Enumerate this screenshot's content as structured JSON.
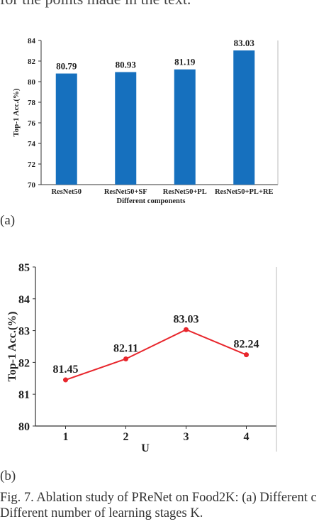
{
  "header_text": "for the points made in the text.",
  "panel_labels": [
    "(a)",
    "(b)"
  ],
  "caption": {
    "line1": "Fig. 7. Ablation study of PReNet on Food2K: (a) Different c",
    "line2": "Different number of learning stages K."
  },
  "chart_data": [
    {
      "type": "bar",
      "categories": [
        "ResNet50",
        "ResNet50+SF",
        "ResNet50+PL",
        "ResNet50+PL+RE"
      ],
      "values": [
        80.79,
        80.93,
        81.19,
        83.03
      ],
      "value_labels": [
        "80.79",
        "80.93",
        "81.19",
        "83.03"
      ],
      "xlabel": "Different components",
      "ylabel": "Top-1 Acc.(%)",
      "ylim": [
        70,
        84
      ],
      "yticks": [
        70,
        72,
        74,
        76,
        78,
        80,
        82,
        84
      ],
      "colors": {
        "bar": "#1670be",
        "axis": "#333333"
      },
      "grid": false
    },
    {
      "type": "line",
      "x": [
        1,
        2,
        3,
        4
      ],
      "values": [
        81.45,
        82.11,
        83.03,
        82.24
      ],
      "value_labels": [
        "81.45",
        "82.11",
        "83.03",
        "82.24"
      ],
      "xlabel": "U",
      "ylabel": "Top-1 Acc.(%)",
      "xlim": [
        0.5,
        4.5
      ],
      "ylim": [
        80,
        85
      ],
      "yticks": [
        80,
        81,
        82,
        83,
        84,
        85
      ],
      "xticks": [
        1,
        2,
        3,
        4
      ],
      "colors": {
        "line": "#e8262c",
        "marker": "#e8262c",
        "axis": "#333333"
      },
      "grid": false
    }
  ]
}
